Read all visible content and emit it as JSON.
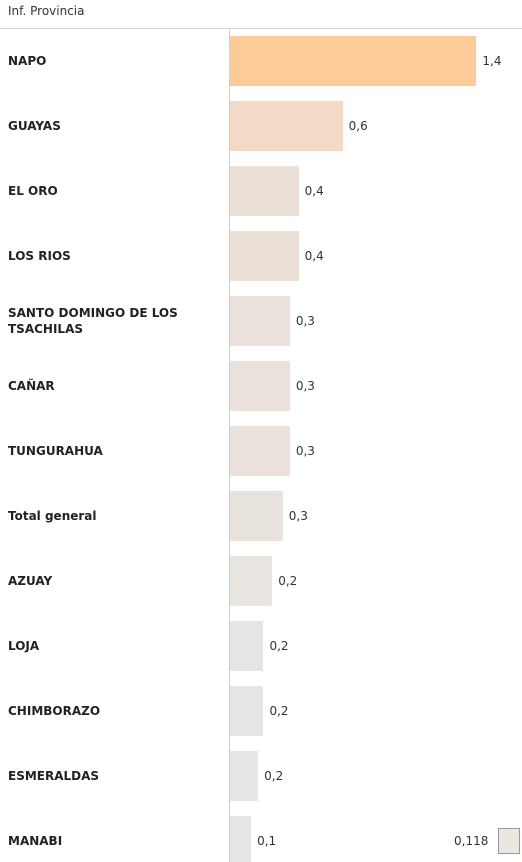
{
  "chart_data": {
    "type": "bar",
    "orientation": "horizontal",
    "title": "Inf. Provincia",
    "categories": [
      "NAPO",
      "GUAYAS",
      "EL ORO",
      "LOS RIOS",
      "SANTO DOMINGO DE LOS TSACHILAS",
      "CAÑAR",
      "TUNGURAHUA",
      "Total general",
      "AZUAY",
      "LOJA",
      "CHIMBORAZO",
      "ESMERALDAS",
      "MANABI"
    ],
    "values": [
      1.4,
      0.64,
      0.39,
      0.39,
      0.34,
      0.34,
      0.34,
      0.3,
      0.24,
      0.19,
      0.19,
      0.16,
      0.12
    ],
    "value_labels": [
      "1,4",
      "0,6",
      "0,4",
      "0,4",
      "0,3",
      "0,3",
      "0,3",
      "0,3",
      "0,2",
      "0,2",
      "0,2",
      "0,2",
      "0,1"
    ],
    "colors": [
      "#fdca9a",
      "#f3dac6",
      "#ebe0d6",
      "#ebe0d6",
      "#eae2da",
      "#eae2da",
      "#eae2da",
      "#e9e3dd",
      "#e8e4e0",
      "#e7e5e3",
      "#e7e5e3",
      "#e6e5e4",
      "#e5e5e5"
    ],
    "xlim": [
      0,
      1.5
    ],
    "color_legend": [
      {
        "value": 0.118,
        "label": "0,118",
        "color": "#ece6e0"
      }
    ]
  }
}
